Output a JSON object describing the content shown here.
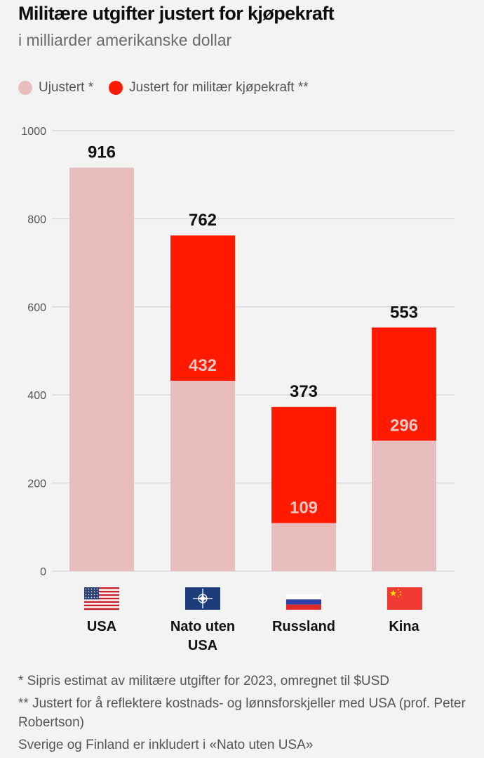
{
  "title": "Militære utgifter justert for kjøpekraft",
  "subtitle": "i milliarder amerikanske dollar",
  "legend": [
    {
      "label": "Ujustert *",
      "color": "#e8bdbd"
    },
    {
      "label": "Justert for militær kjøpekraft **",
      "color": "#ff1a00"
    }
  ],
  "colors": {
    "unadjusted": "#e8bdbd",
    "adjusted": "#ff1a00",
    "grid": "#d9d9d9"
  },
  "chart_data": {
    "type": "bar",
    "categories": [
      "USA",
      "Nato uten USA",
      "Russland",
      "Kina"
    ],
    "category_lines": [
      [
        "USA"
      ],
      [
        "Nato uten",
        "USA"
      ],
      [
        "Russland"
      ],
      [
        "Kina"
      ]
    ],
    "flags": [
      "usa-flag-icon",
      "nato-flag-icon",
      "russia-flag-icon",
      "china-flag-icon"
    ],
    "series": [
      {
        "name": "Ujustert *",
        "values": [
          916,
          432,
          109,
          296
        ]
      },
      {
        "name": "Justert for militær kjøpekraft **",
        "values": [
          916,
          762,
          373,
          553
        ]
      }
    ],
    "top_labels": [
      "916",
      "762",
      "373",
      "553"
    ],
    "inner_labels": [
      "",
      "432",
      "109",
      "296"
    ],
    "ylim": [
      0,
      1000
    ],
    "yticks": [
      0,
      200,
      400,
      600,
      800,
      1000
    ],
    "grid": true,
    "legend_position": "top-left"
  },
  "notes": [
    "* Sipris estimat av militære utgifter for 2023, omregnet til $USD",
    "** Justert for å reflektere kostnads- og lønnsforskjeller med USA (prof. Peter Robertson)",
    "Sverige og Finland er inkludert i «Nato uten USA»"
  ]
}
